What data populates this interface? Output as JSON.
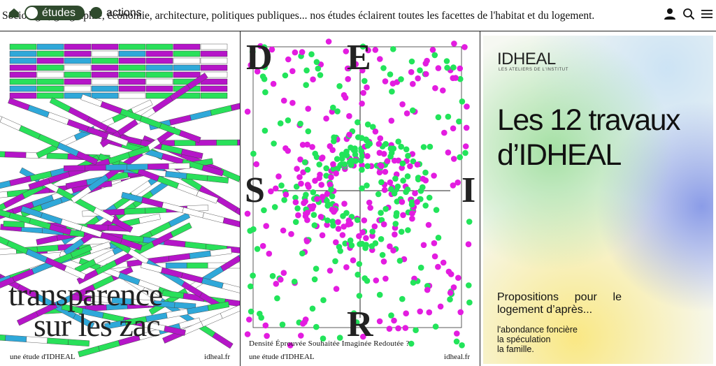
{
  "nav": {
    "tagline": "Sociologie, géographie, économie, architecture, politiques publiques... nos études éclairent toutes les facettes de l'habitat et du logement.",
    "pills": [
      {
        "label": "études",
        "active": true
      },
      {
        "label": "actions",
        "active": false
      }
    ],
    "icons": [
      "home-icon",
      "user-icon",
      "search-icon",
      "menu-icon"
    ],
    "accent": "#2f4a2d"
  },
  "posters": [
    {
      "title_lines": [
        "transparence",
        "sur les zac"
      ],
      "footer_left": "une étude d'IDHEAL",
      "footer_right": "idheal.fr",
      "colors": [
        "#b515c8",
        "#29e05a",
        "#2fa8d9"
      ]
    },
    {
      "letters": {
        "top": "E",
        "left": "S",
        "right": "I",
        "bottom": "R",
        "corner": "D"
      },
      "caption": "Densité Éprouvée Souhaitée Imaginée Redoutée ?",
      "footer_left": "une étude d'IDHEAL",
      "footer_right": "idheal.fr",
      "colors": [
        "#e31ce0",
        "#22e45a"
      ]
    },
    {
      "logo": "IDHEAL",
      "logo_sub": "LES ATELIERS DE L'INSTITUT",
      "title_lines": [
        "Les 12 travaux",
        "d’IDHEAL"
      ],
      "proposition": "Propositions pour le logement d’après...",
      "list": [
        "l'abondance foncière",
        "la spéculation",
        "la famille."
      ]
    }
  ]
}
